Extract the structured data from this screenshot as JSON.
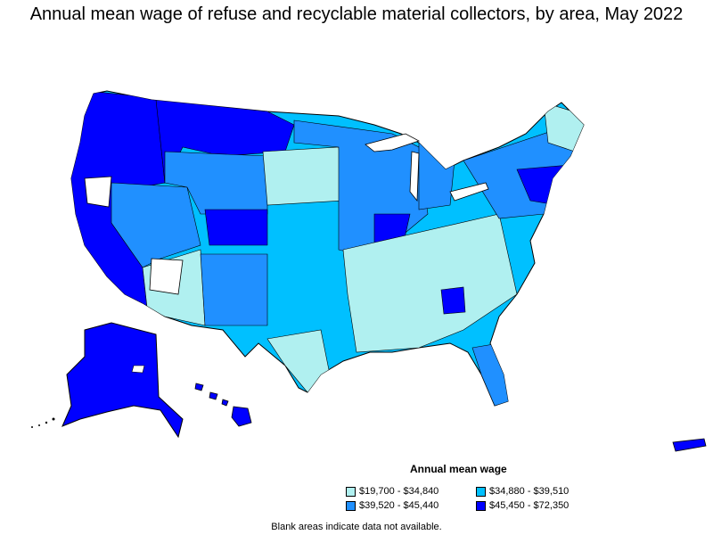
{
  "title": "Annual mean wage of refuse and recyclable material collectors, by area, May 2022",
  "legend": {
    "title": "Annual mean wage",
    "items": [
      {
        "label": "$19,700 - $34,840",
        "color": "#b0f0f0"
      },
      {
        "label": "$34,880 - $39,510",
        "color": "#00c0ff"
      },
      {
        "label": "$39,520 - $45,440",
        "color": "#2090ff"
      },
      {
        "label": "$45,450 - $72,350",
        "color": "#0000ff"
      }
    ]
  },
  "note": "Blank areas indicate data not available.",
  "colors": {
    "no_data": "#ffffff",
    "border": "#000000"
  }
}
